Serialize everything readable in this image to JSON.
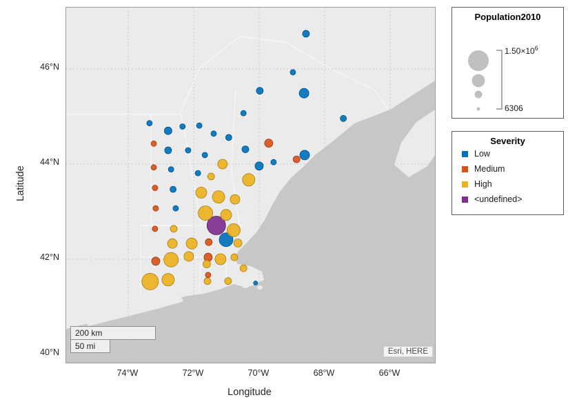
{
  "map": {
    "attribution": "Esri, HERE",
    "scale_bar": {
      "km_label": "200 km",
      "mi_label": "50 mi"
    },
    "colors": {
      "land": "#ebebeb",
      "water": "#c7c7c7",
      "frame": "#9c9c9c"
    }
  },
  "axes": {
    "xlabel": "Longitude",
    "ylabel": "Latitude",
    "x_ticks": [
      {
        "value": -74,
        "label": "74°W"
      },
      {
        "value": -72,
        "label": "72°W"
      },
      {
        "value": -70,
        "label": "70°W"
      },
      {
        "value": -68,
        "label": "68°W"
      },
      {
        "value": -66,
        "label": "66°W"
      }
    ],
    "y_ticks": [
      {
        "value": 46,
        "label": "46°N"
      },
      {
        "value": 44,
        "label": "44°N"
      },
      {
        "value": 42,
        "label": "42°N"
      },
      {
        "value": 40,
        "label": "40°N"
      }
    ]
  },
  "legends": {
    "size": {
      "title": "Population2010",
      "max_label": {
        "base": "1.50×10",
        "exp": "6"
      },
      "min_label": "6306",
      "max_value": 1500000,
      "min_value": 6306,
      "swatch_color": "#b5b5b5"
    },
    "severity": {
      "title": "Severity",
      "items": [
        {
          "label": "Low",
          "color": "#0072BD"
        },
        {
          "label": "Medium",
          "color": "#D95319"
        },
        {
          "label": "High",
          "color": "#EDB120"
        },
        {
          "label": "<undefined>",
          "color": "#7E2F8E"
        }
      ]
    }
  },
  "chart_data": {
    "type": "scatter",
    "subtype": "geobubble",
    "title": "",
    "xlabel": "Longitude",
    "ylabel": "Latitude",
    "lon_range": [
      -75.9,
      -64.6
    ],
    "lat_range": [
      39.9,
      47.2
    ],
    "size_field": "Population2010",
    "size_range": [
      6306,
      1500000
    ],
    "color_field": "Severity",
    "grid": true,
    "points": [
      {
        "lon": -68.57,
        "lat": 46.74,
        "pop": 346000,
        "severity": "Low"
      },
      {
        "lon": -68.97,
        "lat": 45.93,
        "pop": 210000,
        "severity": "Low"
      },
      {
        "lon": -69.98,
        "lat": 45.54,
        "pop": 346000,
        "severity": "Low"
      },
      {
        "lon": -68.63,
        "lat": 45.49,
        "pop": 617000,
        "severity": "Low"
      },
      {
        "lon": -70.48,
        "lat": 45.07,
        "pop": 210000,
        "severity": "Low"
      },
      {
        "lon": -67.43,
        "lat": 44.96,
        "pop": 278000,
        "severity": "Low"
      },
      {
        "lon": -73.35,
        "lat": 44.86,
        "pop": 210000,
        "severity": "Low"
      },
      {
        "lon": -72.78,
        "lat": 44.7,
        "pop": 414000,
        "severity": "Low"
      },
      {
        "lon": -72.34,
        "lat": 44.79,
        "pop": 210000,
        "severity": "Low"
      },
      {
        "lon": -71.83,
        "lat": 44.81,
        "pop": 210000,
        "severity": "Low"
      },
      {
        "lon": -71.39,
        "lat": 44.64,
        "pop": 210000,
        "severity": "Low"
      },
      {
        "lon": -70.93,
        "lat": 44.56,
        "pop": 278000,
        "severity": "Low"
      },
      {
        "lon": -70.42,
        "lat": 44.31,
        "pop": 346000,
        "severity": "Low"
      },
      {
        "lon": -69.71,
        "lat": 44.44,
        "pop": 482000,
        "severity": "Medium"
      },
      {
        "lon": -68.86,
        "lat": 44.1,
        "pop": 346000,
        "severity": "Medium"
      },
      {
        "lon": -68.61,
        "lat": 44.19,
        "pop": 617000,
        "severity": "Low"
      },
      {
        "lon": -73.22,
        "lat": 44.43,
        "pop": 210000,
        "severity": "Medium"
      },
      {
        "lon": -72.78,
        "lat": 44.29,
        "pop": 346000,
        "severity": "Low"
      },
      {
        "lon": -72.17,
        "lat": 44.29,
        "pop": 210000,
        "severity": "Low"
      },
      {
        "lon": -71.66,
        "lat": 44.19,
        "pop": 210000,
        "severity": "Low"
      },
      {
        "lon": -71.12,
        "lat": 44.0,
        "pop": 617000,
        "severity": "High"
      },
      {
        "lon": -70.0,
        "lat": 43.96,
        "pop": 482000,
        "severity": "Low"
      },
      {
        "lon": -69.56,
        "lat": 44.04,
        "pop": 210000,
        "severity": "Low"
      },
      {
        "lon": -73.22,
        "lat": 43.93,
        "pop": 210000,
        "severity": "Medium"
      },
      {
        "lon": -72.69,
        "lat": 43.89,
        "pop": 210000,
        "severity": "Low"
      },
      {
        "lon": -71.87,
        "lat": 43.81,
        "pop": 210000,
        "severity": "Low"
      },
      {
        "lon": -71.47,
        "lat": 43.74,
        "pop": 346000,
        "severity": "High"
      },
      {
        "lon": -70.32,
        "lat": 43.67,
        "pop": 889000,
        "severity": "High"
      },
      {
        "lon": -73.18,
        "lat": 43.5,
        "pop": 210000,
        "severity": "Medium"
      },
      {
        "lon": -72.63,
        "lat": 43.47,
        "pop": 278000,
        "severity": "Low"
      },
      {
        "lon": -71.77,
        "lat": 43.4,
        "pop": 753000,
        "severity": "High"
      },
      {
        "lon": -71.24,
        "lat": 43.31,
        "pop": 889000,
        "severity": "High"
      },
      {
        "lon": -70.74,
        "lat": 43.26,
        "pop": 617000,
        "severity": "High"
      },
      {
        "lon": -73.16,
        "lat": 43.07,
        "pop": 210000,
        "severity": "Medium"
      },
      {
        "lon": -72.55,
        "lat": 43.07,
        "pop": 210000,
        "severity": "Low"
      },
      {
        "lon": -71.64,
        "lat": 42.97,
        "pop": 1092000,
        "severity": "High"
      },
      {
        "lon": -71.01,
        "lat": 42.93,
        "pop": 753000,
        "severity": "High"
      },
      {
        "lon": -73.18,
        "lat": 42.64,
        "pop": 210000,
        "severity": "Medium"
      },
      {
        "lon": -72.61,
        "lat": 42.64,
        "pop": 346000,
        "severity": "High"
      },
      {
        "lon": -71.31,
        "lat": 42.71,
        "pop": 1500000,
        "severity": "<undefined>"
      },
      {
        "lon": -70.78,
        "lat": 42.61,
        "pop": 957000,
        "severity": "High"
      },
      {
        "lon": -72.65,
        "lat": 42.33,
        "pop": 617000,
        "severity": "High"
      },
      {
        "lon": -72.06,
        "lat": 42.33,
        "pop": 753000,
        "severity": "High"
      },
      {
        "lon": -71.54,
        "lat": 42.36,
        "pop": 346000,
        "severity": "Medium"
      },
      {
        "lon": -71.01,
        "lat": 42.41,
        "pop": 1025000,
        "severity": "Low"
      },
      {
        "lon": -70.65,
        "lat": 42.34,
        "pop": 482000,
        "severity": "High"
      },
      {
        "lon": -73.16,
        "lat": 41.96,
        "pop": 482000,
        "severity": "Medium"
      },
      {
        "lon": -72.69,
        "lat": 41.99,
        "pop": 1092000,
        "severity": "High"
      },
      {
        "lon": -72.15,
        "lat": 42.06,
        "pop": 617000,
        "severity": "High"
      },
      {
        "lon": -71.56,
        "lat": 42.04,
        "pop": 482000,
        "severity": "Medium"
      },
      {
        "lon": -71.6,
        "lat": 41.9,
        "pop": 414000,
        "severity": "High"
      },
      {
        "lon": -71.18,
        "lat": 42.0,
        "pop": 753000,
        "severity": "High"
      },
      {
        "lon": -70.76,
        "lat": 42.04,
        "pop": 346000,
        "severity": "High"
      },
      {
        "lon": -71.56,
        "lat": 41.67,
        "pop": 210000,
        "severity": "Medium"
      },
      {
        "lon": -73.33,
        "lat": 41.53,
        "pop": 1296000,
        "severity": "High"
      },
      {
        "lon": -72.78,
        "lat": 41.57,
        "pop": 889000,
        "severity": "High"
      },
      {
        "lon": -71.58,
        "lat": 41.54,
        "pop": 346000,
        "severity": "High"
      },
      {
        "lon": -70.95,
        "lat": 41.54,
        "pop": 346000,
        "severity": "High"
      },
      {
        "lon": -70.11,
        "lat": 41.5,
        "pop": 74000,
        "severity": "Low"
      },
      {
        "lon": -70.48,
        "lat": 41.81,
        "pop": 346000,
        "severity": "High"
      }
    ]
  }
}
